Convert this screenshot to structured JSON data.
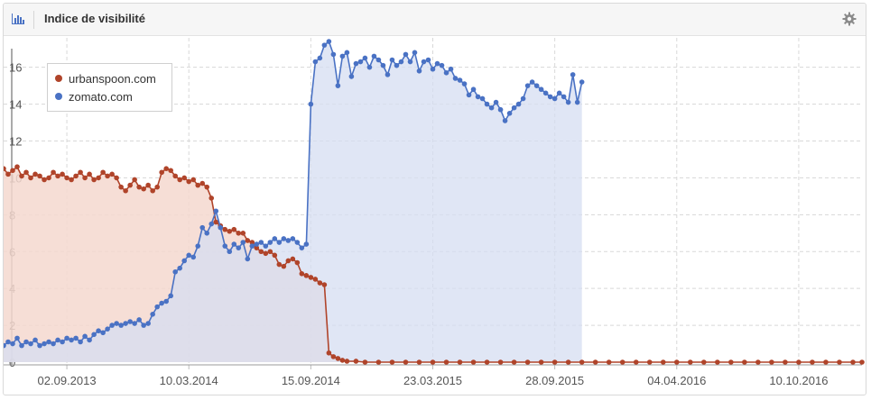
{
  "widget": {
    "title": "Indice de visibilité",
    "title_icon": "bar-chart-icon",
    "settings_icon": "gear-icon"
  },
  "colors": {
    "urbanspoon": "#b0442a",
    "zomato": "#4a72c4",
    "urbanspoon_fill": "#f4d8cf",
    "zomato_fill": "#d6ddf1",
    "overlap_fill": "#c9b8c2"
  },
  "chart_data": {
    "type": "area",
    "title": "",
    "xlabel": "",
    "ylabel": "",
    "ylim": [
      0,
      17.5
    ],
    "yticks": [
      0,
      2,
      4,
      6,
      8,
      10,
      12,
      14,
      16
    ],
    "x_range": [
      "2013-05-27",
      "2017-01-16"
    ],
    "xtick_labels": [
      "02.09.2013",
      "10.03.2014",
      "15.09.2014",
      "23.03.2015",
      "28.09.2015",
      "04.04.2016",
      "10.10.2016"
    ],
    "xtick_dates": [
      "2013-09-02",
      "2014-03-10",
      "2014-09-15",
      "2015-03-23",
      "2015-09-28",
      "2016-04-04",
      "2016-10-10"
    ],
    "grid": true,
    "legend_position": "top-left",
    "series": [
      {
        "name": "urbanspoon.com",
        "color": "#b0442a",
        "points": [
          [
            "2013-05-27",
            10.5
          ],
          [
            "2013-06-03",
            10.2
          ],
          [
            "2013-06-10",
            10.4
          ],
          [
            "2013-06-17",
            10.6
          ],
          [
            "2013-06-24",
            10.1
          ],
          [
            "2013-07-01",
            10.3
          ],
          [
            "2013-07-08",
            10.0
          ],
          [
            "2013-07-15",
            10.2
          ],
          [
            "2013-07-22",
            10.1
          ],
          [
            "2013-07-29",
            9.9
          ],
          [
            "2013-08-05",
            10.0
          ],
          [
            "2013-08-12",
            10.3
          ],
          [
            "2013-08-19",
            10.1
          ],
          [
            "2013-08-26",
            10.2
          ],
          [
            "2013-09-02",
            10.0
          ],
          [
            "2013-09-09",
            9.9
          ],
          [
            "2013-09-16",
            10.1
          ],
          [
            "2013-09-23",
            10.3
          ],
          [
            "2013-09-30",
            10.0
          ],
          [
            "2013-10-07",
            10.2
          ],
          [
            "2013-10-14",
            9.9
          ],
          [
            "2013-10-21",
            10.0
          ],
          [
            "2013-10-28",
            10.3
          ],
          [
            "2013-11-04",
            10.1
          ],
          [
            "2013-11-11",
            10.2
          ],
          [
            "2013-11-18",
            10.0
          ],
          [
            "2013-11-25",
            9.5
          ],
          [
            "2013-12-02",
            9.3
          ],
          [
            "2013-12-09",
            9.6
          ],
          [
            "2013-12-16",
            9.9
          ],
          [
            "2013-12-23",
            9.5
          ],
          [
            "2013-12-30",
            9.4
          ],
          [
            "2014-01-06",
            9.6
          ],
          [
            "2014-01-13",
            9.3
          ],
          [
            "2014-01-20",
            9.5
          ],
          [
            "2014-01-27",
            10.3
          ],
          [
            "2014-02-03",
            10.5
          ],
          [
            "2014-02-10",
            10.4
          ],
          [
            "2014-02-17",
            10.1
          ],
          [
            "2014-02-24",
            9.9
          ],
          [
            "2014-03-03",
            10.0
          ],
          [
            "2014-03-10",
            9.8
          ],
          [
            "2014-03-17",
            9.9
          ],
          [
            "2014-03-24",
            9.6
          ],
          [
            "2014-03-31",
            9.7
          ],
          [
            "2014-04-07",
            9.5
          ],
          [
            "2014-04-14",
            8.9
          ],
          [
            "2014-04-21",
            7.6
          ],
          [
            "2014-04-28",
            7.4
          ],
          [
            "2014-05-05",
            7.2
          ],
          [
            "2014-05-12",
            7.1
          ],
          [
            "2014-05-19",
            7.2
          ],
          [
            "2014-05-26",
            7.0
          ],
          [
            "2014-06-02",
            7.0
          ],
          [
            "2014-06-09",
            6.6
          ],
          [
            "2014-06-16",
            6.5
          ],
          [
            "2014-06-23",
            6.2
          ],
          [
            "2014-06-30",
            6.0
          ],
          [
            "2014-07-07",
            5.9
          ],
          [
            "2014-07-14",
            6.0
          ],
          [
            "2014-07-21",
            5.8
          ],
          [
            "2014-07-28",
            5.3
          ],
          [
            "2014-08-04",
            5.2
          ],
          [
            "2014-08-11",
            5.5
          ],
          [
            "2014-08-18",
            5.6
          ],
          [
            "2014-08-25",
            5.4
          ],
          [
            "2014-09-01",
            4.8
          ],
          [
            "2014-09-08",
            4.7
          ],
          [
            "2014-09-15",
            4.6
          ],
          [
            "2014-09-22",
            4.5
          ],
          [
            "2014-09-29",
            4.3
          ],
          [
            "2014-10-06",
            4.2
          ],
          [
            "2014-10-13",
            0.5
          ],
          [
            "2014-10-20",
            0.3
          ],
          [
            "2014-10-27",
            0.2
          ],
          [
            "2014-11-03",
            0.1
          ],
          [
            "2014-11-10",
            0.05
          ],
          [
            "2014-11-24",
            0.05
          ],
          [
            "2014-12-08",
            0.0
          ],
          [
            "2014-12-29",
            0.0
          ],
          [
            "2015-01-19",
            0.0
          ],
          [
            "2015-02-09",
            0.0
          ],
          [
            "2015-03-02",
            0.0
          ],
          [
            "2015-03-23",
            0.0
          ],
          [
            "2015-04-13",
            0.0
          ],
          [
            "2015-05-04",
            0.0
          ],
          [
            "2015-05-25",
            0.0
          ],
          [
            "2015-06-15",
            0.0
          ],
          [
            "2015-07-06",
            0.0
          ],
          [
            "2015-07-27",
            0.0
          ],
          [
            "2015-08-17",
            0.0
          ],
          [
            "2015-09-07",
            0.0
          ],
          [
            "2015-09-28",
            0.0
          ],
          [
            "2015-10-19",
            0.0
          ],
          [
            "2015-11-09",
            0.0
          ],
          [
            "2015-11-30",
            0.0
          ],
          [
            "2015-12-21",
            0.0
          ],
          [
            "2016-01-11",
            0.0
          ],
          [
            "2016-02-01",
            0.0
          ],
          [
            "2016-02-22",
            0.0
          ],
          [
            "2016-03-14",
            0.0
          ],
          [
            "2016-04-04",
            0.0
          ],
          [
            "2016-04-25",
            0.0
          ],
          [
            "2016-05-16",
            0.0
          ],
          [
            "2016-06-06",
            0.0
          ],
          [
            "2016-06-27",
            0.0
          ],
          [
            "2016-07-18",
            0.0
          ],
          [
            "2016-08-08",
            0.0
          ],
          [
            "2016-08-29",
            0.0
          ],
          [
            "2016-09-19",
            0.0
          ],
          [
            "2016-10-10",
            0.0
          ],
          [
            "2016-10-31",
            0.0
          ],
          [
            "2016-11-21",
            0.0
          ],
          [
            "2016-12-12",
            0.0
          ],
          [
            "2017-01-02",
            0.0
          ],
          [
            "2017-01-16",
            0.0
          ]
        ]
      },
      {
        "name": "zomato.com",
        "color": "#4a72c4",
        "points": [
          [
            "2013-05-27",
            0.9
          ],
          [
            "2013-06-03",
            1.1
          ],
          [
            "2013-06-10",
            1.0
          ],
          [
            "2013-06-17",
            1.3
          ],
          [
            "2013-06-24",
            0.9
          ],
          [
            "2013-07-01",
            1.1
          ],
          [
            "2013-07-08",
            1.0
          ],
          [
            "2013-07-15",
            1.2
          ],
          [
            "2013-07-22",
            0.9
          ],
          [
            "2013-07-29",
            1.0
          ],
          [
            "2013-08-05",
            1.1
          ],
          [
            "2013-08-12",
            1.0
          ],
          [
            "2013-08-19",
            1.2
          ],
          [
            "2013-08-26",
            1.1
          ],
          [
            "2013-09-02",
            1.3
          ],
          [
            "2013-09-09",
            1.2
          ],
          [
            "2013-09-16",
            1.3
          ],
          [
            "2013-09-23",
            1.1
          ],
          [
            "2013-09-30",
            1.4
          ],
          [
            "2013-10-07",
            1.2
          ],
          [
            "2013-10-14",
            1.5
          ],
          [
            "2013-10-21",
            1.7
          ],
          [
            "2013-10-28",
            1.6
          ],
          [
            "2013-11-04",
            1.8
          ],
          [
            "2013-11-11",
            2.0
          ],
          [
            "2013-11-18",
            2.1
          ],
          [
            "2013-11-25",
            2.0
          ],
          [
            "2013-12-02",
            2.1
          ],
          [
            "2013-12-09",
            2.2
          ],
          [
            "2013-12-16",
            2.1
          ],
          [
            "2013-12-23",
            2.3
          ],
          [
            "2013-12-30",
            2.0
          ],
          [
            "2014-01-06",
            2.1
          ],
          [
            "2014-01-13",
            2.6
          ],
          [
            "2014-01-20",
            3.0
          ],
          [
            "2014-01-27",
            3.2
          ],
          [
            "2014-02-03",
            3.3
          ],
          [
            "2014-02-10",
            3.6
          ],
          [
            "2014-02-17",
            4.9
          ],
          [
            "2014-02-24",
            5.1
          ],
          [
            "2014-03-03",
            5.5
          ],
          [
            "2014-03-10",
            5.8
          ],
          [
            "2014-03-17",
            5.7
          ],
          [
            "2014-03-24",
            6.3
          ],
          [
            "2014-03-31",
            7.3
          ],
          [
            "2014-04-07",
            7.0
          ],
          [
            "2014-04-14",
            7.5
          ],
          [
            "2014-04-21",
            8.2
          ],
          [
            "2014-04-28",
            7.3
          ],
          [
            "2014-05-05",
            6.3
          ],
          [
            "2014-05-12",
            6.0
          ],
          [
            "2014-05-19",
            6.4
          ],
          [
            "2014-05-26",
            6.2
          ],
          [
            "2014-06-02",
            6.5
          ],
          [
            "2014-06-09",
            5.6
          ],
          [
            "2014-06-16",
            6.3
          ],
          [
            "2014-06-23",
            6.4
          ],
          [
            "2014-06-30",
            6.5
          ],
          [
            "2014-07-07",
            6.3
          ],
          [
            "2014-07-14",
            6.5
          ],
          [
            "2014-07-21",
            6.7
          ],
          [
            "2014-07-28",
            6.5
          ],
          [
            "2014-08-04",
            6.7
          ],
          [
            "2014-08-11",
            6.6
          ],
          [
            "2014-08-18",
            6.7
          ],
          [
            "2014-08-25",
            6.5
          ],
          [
            "2014-09-01",
            6.2
          ],
          [
            "2014-09-08",
            6.4
          ],
          [
            "2014-09-15",
            14.0
          ],
          [
            "2014-09-22",
            16.3
          ],
          [
            "2014-09-29",
            16.5
          ],
          [
            "2014-10-06",
            17.2
          ],
          [
            "2014-10-13",
            17.4
          ],
          [
            "2014-10-20",
            16.7
          ],
          [
            "2014-10-27",
            15.0
          ],
          [
            "2014-11-03",
            16.6
          ],
          [
            "2014-11-10",
            16.8
          ],
          [
            "2014-11-17",
            15.5
          ],
          [
            "2014-11-24",
            16.2
          ],
          [
            "2014-12-01",
            16.3
          ],
          [
            "2014-12-08",
            16.5
          ],
          [
            "2014-12-15",
            16.0
          ],
          [
            "2014-12-22",
            16.6
          ],
          [
            "2014-12-29",
            16.4
          ],
          [
            "2015-01-05",
            16.1
          ],
          [
            "2015-01-12",
            15.6
          ],
          [
            "2015-01-19",
            16.4
          ],
          [
            "2015-01-26",
            16.1
          ],
          [
            "2015-02-02",
            16.3
          ],
          [
            "2015-02-09",
            16.7
          ],
          [
            "2015-02-16",
            16.3
          ],
          [
            "2015-02-23",
            16.8
          ],
          [
            "2015-03-02",
            15.8
          ],
          [
            "2015-03-09",
            16.3
          ],
          [
            "2015-03-16",
            16.4
          ],
          [
            "2015-03-23",
            15.9
          ],
          [
            "2015-03-30",
            16.2
          ],
          [
            "2015-04-06",
            16.1
          ],
          [
            "2015-04-13",
            15.7
          ],
          [
            "2015-04-20",
            15.9
          ],
          [
            "2015-04-27",
            15.4
          ],
          [
            "2015-05-04",
            15.3
          ],
          [
            "2015-05-11",
            15.1
          ],
          [
            "2015-05-18",
            14.5
          ],
          [
            "2015-05-25",
            14.8
          ],
          [
            "2015-06-01",
            14.4
          ],
          [
            "2015-06-08",
            14.3
          ],
          [
            "2015-06-15",
            14.0
          ],
          [
            "2015-06-22",
            13.8
          ],
          [
            "2015-06-29",
            14.1
          ],
          [
            "2015-07-06",
            13.7
          ],
          [
            "2015-07-13",
            13.1
          ],
          [
            "2015-07-20",
            13.5
          ],
          [
            "2015-07-27",
            13.8
          ],
          [
            "2015-08-03",
            14.0
          ],
          [
            "2015-08-10",
            14.3
          ],
          [
            "2015-08-17",
            15.0
          ],
          [
            "2015-08-24",
            15.2
          ],
          [
            "2015-08-31",
            15.0
          ],
          [
            "2015-09-07",
            14.8
          ],
          [
            "2015-09-14",
            14.6
          ],
          [
            "2015-09-21",
            14.4
          ],
          [
            "2015-09-28",
            14.3
          ],
          [
            "2015-10-05",
            14.6
          ],
          [
            "2015-10-12",
            14.4
          ],
          [
            "2015-10-19",
            14.1
          ],
          [
            "2015-10-26",
            15.6
          ],
          [
            "2015-11-02",
            14.1
          ],
          [
            "2015-11-09",
            15.2
          ]
        ]
      }
    ]
  }
}
